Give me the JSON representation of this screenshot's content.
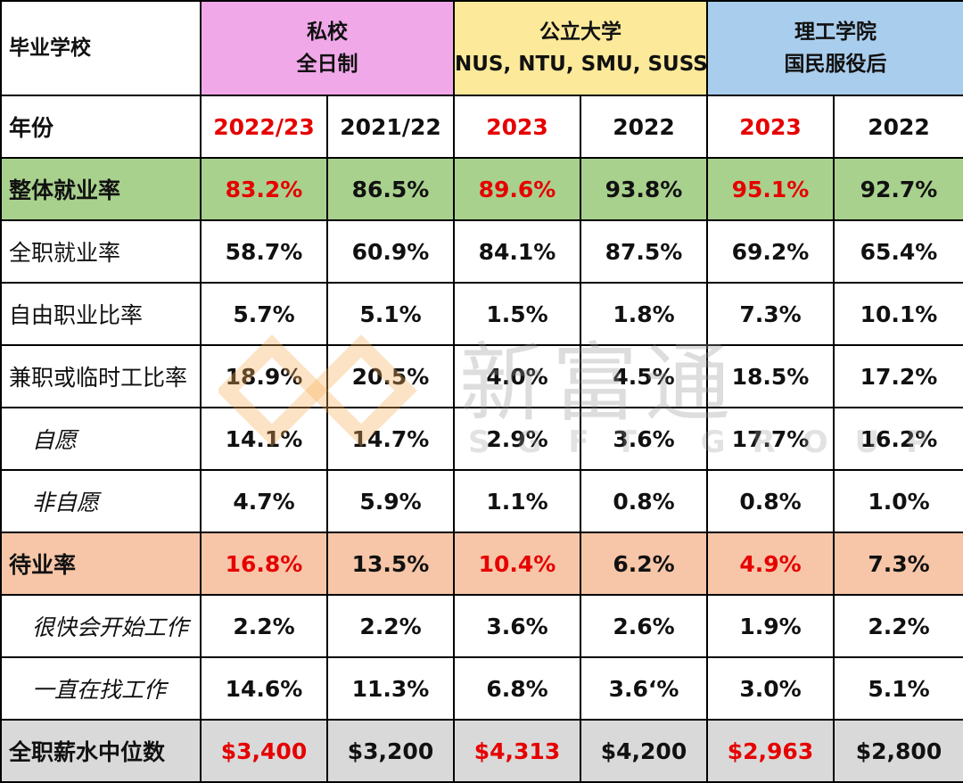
{
  "header": {
    "label": "毕业学校",
    "private": {
      "line1": "私校",
      "line2": "全日制"
    },
    "public": {
      "line1": "公立大学",
      "line2": "NUS, NTU, SMU, SUSS"
    },
    "poly": {
      "line1": "理工学院",
      "line2": "国民服役后"
    }
  },
  "year_row": {
    "label": "年份",
    "years": [
      "2022/23",
      "2021/22",
      "2023",
      "2022",
      "2023",
      "2022"
    ]
  },
  "rows": [
    {
      "label": "整体就业率",
      "values": [
        "83.2%",
        "86.5%",
        "89.6%",
        "93.8%",
        "95.1%",
        "92.7%"
      ]
    },
    {
      "label": "全职就业率",
      "values": [
        "58.7%",
        "60.9%",
        "84.1%",
        "87.5%",
        "69.2%",
        "65.4%"
      ]
    },
    {
      "label": "自由职业比率",
      "values": [
        "5.7%",
        "5.1%",
        "1.5%",
        "1.8%",
        "7.3%",
        "10.1%"
      ]
    },
    {
      "label": "兼职或临时工比率",
      "values": [
        "18.9%",
        "20.5%",
        "4.0%",
        "4.5%",
        "18.5%",
        "17.2%"
      ]
    },
    {
      "label": "自愿",
      "values": [
        "14.1%",
        "14.7%",
        "2.9%",
        "3.6%",
        "17.7%",
        "16.2%"
      ]
    },
    {
      "label": "非自愿",
      "values": [
        "4.7%",
        "5.9%",
        "1.1%",
        "0.8%",
        "0.8%",
        "1.0%"
      ]
    },
    {
      "label": "待业率",
      "values": [
        "16.8%",
        "13.5%",
        "10.4%",
        "6.2%",
        "4.9%",
        "7.3%"
      ]
    },
    {
      "label": "很快会开始工作",
      "values": [
        "2.2%",
        "2.2%",
        "3.6%",
        "2.6%",
        "1.9%",
        "2.2%"
      ]
    },
    {
      "label": "一直在找工作",
      "values": [
        "14.6%",
        "11.3%",
        "6.8%",
        "3.6‘%",
        "3.0%",
        "5.1%"
      ]
    },
    {
      "label": "全职薪水中位数",
      "values": [
        "$3,400",
        "$3,200",
        "$4,313",
        "$4,200",
        "$2,963",
        "$2,800"
      ]
    }
  ],
  "watermark": {
    "cn": "新富通",
    "en": "SGFT GROUP"
  },
  "colors": {
    "pink": "#f0a8e8",
    "yellow": "#fde99a",
    "blue": "#a9cdec",
    "green": "#a9d18e",
    "orange": "#f7c6a8",
    "gray": "#d9d9d9",
    "highlight_red": "#e60000"
  }
}
